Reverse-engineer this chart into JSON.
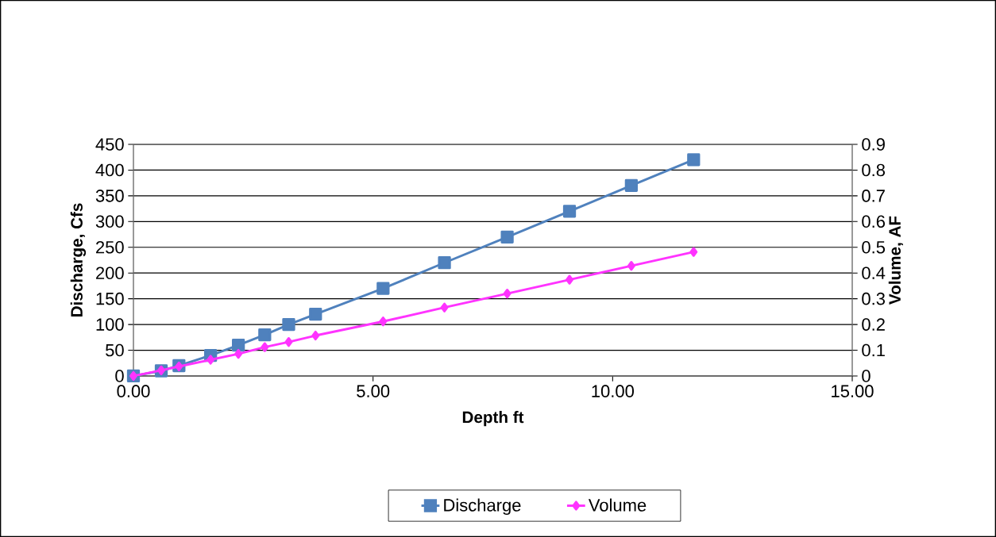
{
  "chart_data": {
    "type": "line",
    "xlabel": "Depth ft",
    "ylabel": "Discharge, Cfs",
    "y2label": "Volume, AF",
    "xlim": [
      0,
      15
    ],
    "xticks": [
      {
        "value": 0,
        "label": "0.00"
      },
      {
        "value": 5,
        "label": "5.00"
      },
      {
        "value": 10,
        "label": "10.00"
      },
      {
        "value": 15,
        "label": "15.00"
      }
    ],
    "ylim": [
      0,
      450
    ],
    "yticks": [
      0,
      50,
      100,
      150,
      200,
      250,
      300,
      350,
      400,
      450
    ],
    "y2lim": [
      0,
      0.9
    ],
    "y2ticks": [
      0,
      0.1,
      0.2,
      0.3,
      0.4,
      0.5,
      0.6,
      0.7,
      0.8,
      0.9
    ],
    "grid": "y",
    "legend": "bottom",
    "x": [
      0,
      0.58,
      0.95,
      1.61,
      2.19,
      2.74,
      3.24,
      3.8,
      5.21,
      6.49,
      7.8,
      9.1,
      10.39,
      11.69
    ],
    "series": [
      {
        "name": "Discharge",
        "color": "#4f81bd",
        "marker": "square",
        "values": [
          0,
          10,
          20,
          40,
          60,
          80,
          100,
          120,
          170,
          220,
          270,
          320,
          370,
          420
        ]
      },
      {
        "name": "Volume",
        "color": "#ff33ff",
        "marker": "diamond",
        "axis": "y2",
        "values": [
          0,
          0.022,
          0.037,
          0.063,
          0.086,
          0.112,
          0.132,
          0.157,
          0.212,
          0.266,
          0.32,
          0.374,
          0.428,
          0.482
        ]
      }
    ]
  }
}
